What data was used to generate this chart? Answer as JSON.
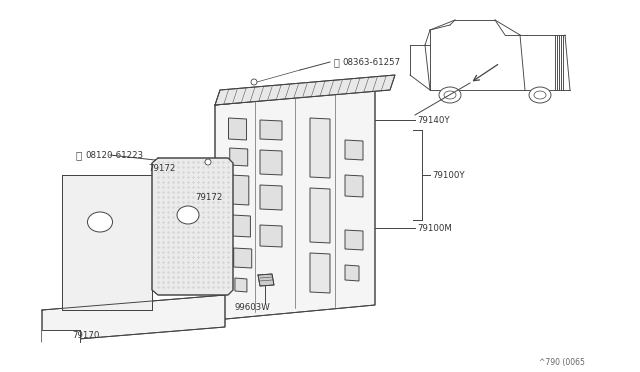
{
  "background_color": "#ffffff",
  "fig_width": 6.4,
  "fig_height": 3.72,
  "dpi": 100,
  "diagram_ref": "^790 (0065",
  "labels": {
    "S_bolt": "08363-61257",
    "B_bolt": "08120-61223",
    "p79172_left": "79172",
    "p79172_right": "79172",
    "p79170": "79170",
    "p79140Y": "79140Y",
    "p79100Y": "79100Y",
    "p79100M": "79100M",
    "p99603W": "99603W"
  },
  "lc": "#444444",
  "tc": "#333333",
  "bg_fill": "#f8f8f8",
  "panel_fill": "#f2f2f2",
  "insulator_fill": "#e8e8e8",
  "strip_fill": "#e0e0e0"
}
